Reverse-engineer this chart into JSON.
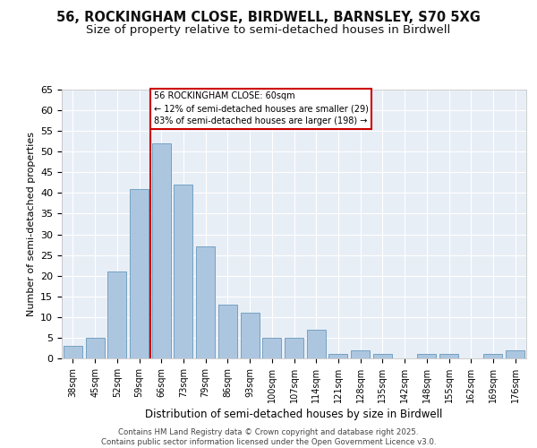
{
  "title_line1": "56, ROCKINGHAM CLOSE, BIRDWELL, BARNSLEY, S70 5XG",
  "title_line2": "Size of property relative to semi-detached houses in Birdwell",
  "xlabel": "Distribution of semi-detached houses by size in Birdwell",
  "ylabel": "Number of semi-detached properties",
  "bar_labels": [
    "38sqm",
    "45sqm",
    "52sqm",
    "59sqm",
    "66sqm",
    "73sqm",
    "79sqm",
    "86sqm",
    "93sqm",
    "100sqm",
    "107sqm",
    "114sqm",
    "121sqm",
    "128sqm",
    "135sqm",
    "142sqm",
    "148sqm",
    "155sqm",
    "162sqm",
    "169sqm",
    "176sqm"
  ],
  "bar_values": [
    3,
    5,
    21,
    41,
    52,
    42,
    27,
    13,
    11,
    5,
    5,
    7,
    1,
    2,
    1,
    0,
    1,
    1,
    0,
    1,
    2
  ],
  "bar_color": "#adc6e0",
  "bar_edgecolor": "#6699bb",
  "property_bin_index": 3,
  "annotation_title": "56 ROCKINGHAM CLOSE: 60sqm",
  "annotation_line2": "← 12% of semi-detached houses are smaller (29)",
  "annotation_line3": "83% of semi-detached houses are larger (198) →",
  "vline_color": "#cc0000",
  "annotation_box_edgecolor": "#cc0000",
  "ylim": [
    0,
    65
  ],
  "yticks": [
    0,
    5,
    10,
    15,
    20,
    25,
    30,
    35,
    40,
    45,
    50,
    55,
    60,
    65
  ],
  "background_color": "#e8eef6",
  "footer": "Contains HM Land Registry data © Crown copyright and database right 2025.\nContains public sector information licensed under the Open Government Licence v3.0.",
  "title_fontsize": 10.5,
  "subtitle_fontsize": 9.5
}
